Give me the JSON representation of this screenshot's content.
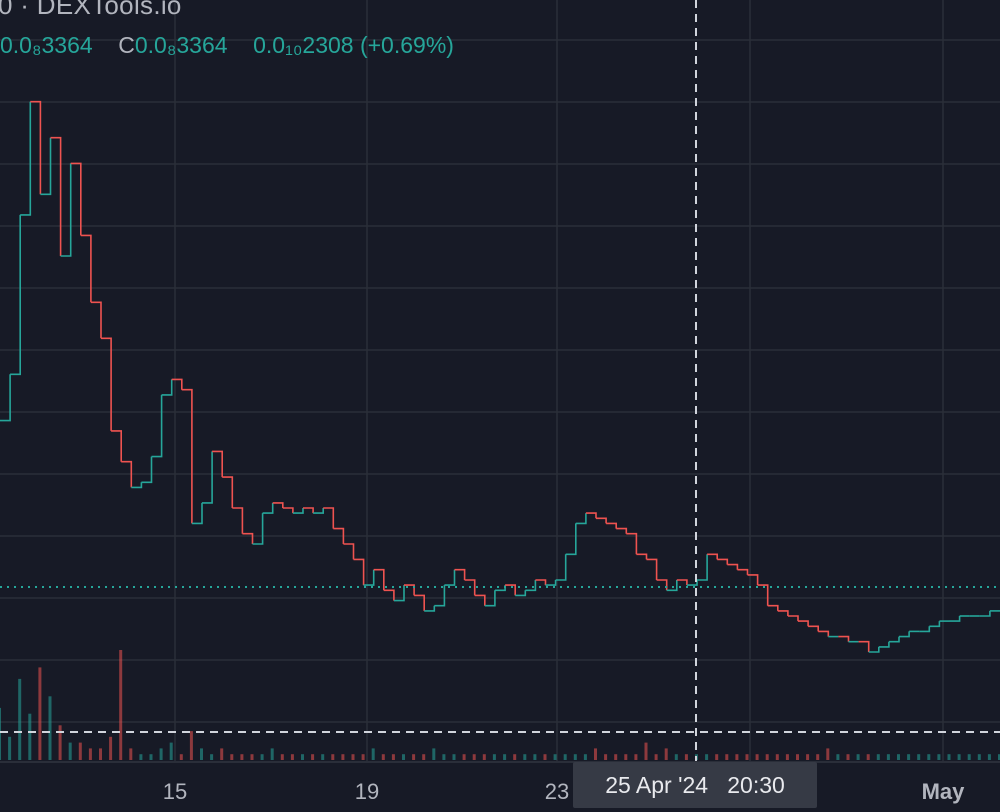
{
  "legend": {
    "title": "0 · DEXTools.io",
    "close_value": "0.0₈3364",
    "close_key": "C",
    "close_value_2": "0.0₈3364",
    "change_value": "0.0₁₀2308",
    "change_percent": "(+0.69%)"
  },
  "crosshair": {
    "date": "25 Apr '24",
    "time": "20:30"
  },
  "colors": {
    "background": "#171a26",
    "up": "#26a69a",
    "down": "#ef5350",
    "grid": "#2a2e39",
    "price_line": "#26a69a"
  },
  "chart_data": {
    "type": "line",
    "title": "",
    "xlabel": "",
    "ylabel": "",
    "x_ticks": [
      "15",
      "19",
      "23",
      "May"
    ],
    "grid": true,
    "y_range": [
      0,
      14
    ],
    "last_close": 3.364,
    "series": [
      {
        "name": "",
        "x": [
          0,
          1,
          2,
          3,
          4,
          5,
          6,
          7,
          8,
          9,
          10,
          11,
          12,
          13,
          14,
          15,
          16,
          17,
          18,
          19,
          20,
          21,
          22,
          23,
          24,
          25,
          26,
          27,
          28,
          29,
          30,
          31,
          32,
          33,
          34,
          35,
          36,
          37,
          38,
          39,
          40,
          41,
          42,
          43,
          44,
          45,
          46,
          47,
          48,
          49,
          50,
          51,
          52,
          53,
          54,
          55,
          56,
          57,
          58,
          59,
          60,
          61,
          62,
          63,
          64,
          65,
          66,
          67,
          68,
          69,
          70,
          71,
          72,
          73,
          74,
          75,
          76,
          77,
          78,
          79,
          80,
          81,
          82,
          83,
          84,
          85,
          86,
          87,
          88,
          89,
          90,
          91,
          92,
          93,
          94,
          95,
          96,
          97,
          98,
          99
        ],
        "values": [
          6.6,
          7.5,
          10.6,
          12.8,
          11.0,
          12.1,
          9.8,
          11.6,
          10.2,
          8.9,
          8.2,
          6.4,
          5.8,
          5.3,
          5.4,
          5.9,
          7.1,
          7.4,
          7.2,
          4.6,
          5.0,
          6.0,
          5.5,
          4.9,
          4.4,
          4.2,
          4.8,
          5.0,
          4.9,
          4.8,
          4.9,
          4.8,
          4.9,
          4.5,
          4.2,
          3.9,
          3.4,
          3.7,
          3.3,
          3.1,
          3.4,
          3.2,
          2.9,
          3.0,
          3.4,
          3.7,
          3.5,
          3.2,
          3.0,
          3.3,
          3.4,
          3.2,
          3.3,
          3.5,
          3.4,
          3.5,
          4.0,
          4.6,
          4.8,
          4.7,
          4.6,
          4.5,
          4.4,
          4.0,
          3.9,
          3.5,
          3.3,
          3.5,
          3.4,
          3.5,
          4.0,
          3.9,
          3.8,
          3.7,
          3.6,
          3.4,
          3.0,
          2.9,
          2.8,
          2.7,
          2.6,
          2.5,
          2.4,
          2.4,
          2.3,
          2.3,
          2.1,
          2.2,
          2.3,
          2.4,
          2.5,
          2.5,
          2.6,
          2.7,
          2.7,
          2.8,
          2.8,
          2.8,
          2.9,
          2.9
        ]
      }
    ],
    "volume": [
      9,
      4,
      14,
      8,
      16,
      11,
      6,
      3,
      3,
      2,
      2,
      4,
      19,
      2,
      1,
      1,
      2,
      3,
      1,
      5,
      2,
      1,
      2,
      1,
      1,
      1,
      1,
      2,
      1,
      1,
      1,
      1,
      1,
      1,
      1,
      1,
      1,
      2,
      1,
      1,
      1,
      1,
      1,
      2,
      1,
      1,
      1,
      1,
      1,
      1,
      1,
      1,
      1,
      1,
      1,
      1,
      1,
      1,
      1,
      2,
      1,
      1,
      1,
      1,
      3,
      1,
      2,
      1,
      1,
      1,
      1,
      1,
      1,
      1,
      1,
      1,
      1,
      1,
      1,
      1,
      1,
      1,
      2,
      1,
      1,
      1,
      1,
      1,
      1,
      1,
      1,
      1,
      1,
      1,
      1,
      1,
      1,
      1,
      1,
      1
    ]
  }
}
